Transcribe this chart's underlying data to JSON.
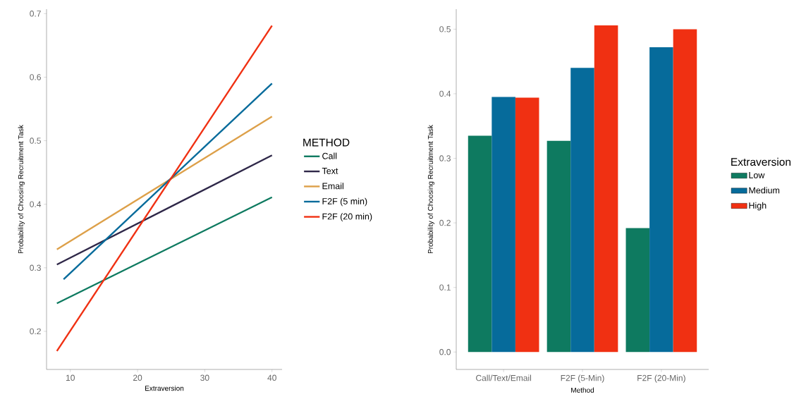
{
  "chart_data": [
    {
      "type": "line",
      "xlabel": "Extraversion",
      "ylabel": "Probability of Choosing Recruitment Task",
      "legend_title": "METHOD",
      "legend": "right",
      "xlim": [
        6.46,
        41.5
      ],
      "ylim": [
        0.14,
        0.707
      ],
      "xticks": [
        10,
        20,
        30,
        40
      ],
      "yticks": [
        0.2,
        0.3,
        0.4,
        0.5,
        0.6,
        0.7
      ],
      "series": [
        {
          "name": "Call",
          "color": "#0e7a60",
          "x": [
            8,
            40
          ],
          "values": [
            0.244,
            0.411
          ]
        },
        {
          "name": "Text",
          "color": "#2e2748",
          "x": [
            8,
            40
          ],
          "values": [
            0.305,
            0.477
          ]
        },
        {
          "name": "Email",
          "color": "#dda049",
          "x": [
            8,
            40
          ],
          "values": [
            0.329,
            0.538
          ]
        },
        {
          "name": "F2F (5 min)",
          "color": "#066b9b",
          "x": [
            9,
            40
          ],
          "values": [
            0.282,
            0.59
          ]
        },
        {
          "name": "F2F (20 min)",
          "color": "#f03012",
          "x": [
            8,
            40
          ],
          "values": [
            0.169,
            0.681
          ]
        }
      ]
    },
    {
      "type": "bar",
      "xlabel": "Method",
      "ylabel": "Probability of Choosing Recruitment Task",
      "legend_title": "Extraversion",
      "legend": "right",
      "categories": [
        "Call/Text/Email",
        "F2F (5-Min)",
        "F2F (20-Min)"
      ],
      "ylim": [
        -0.027,
        0.531
      ],
      "yticks": [
        {
          "value": 0,
          "label": "0.0"
        },
        0.1,
        0.2,
        0.3,
        0.4,
        0.5
      ],
      "series": [
        {
          "name": "Low",
          "color": "#0e7a60",
          "values": [
            0.335,
            0.327,
            0.192
          ]
        },
        {
          "name": "Medium",
          "color": "#066b9b",
          "values": [
            0.395,
            0.44,
            0.472
          ]
        },
        {
          "name": "High",
          "color": "#f03012",
          "values": [
            0.394,
            0.506,
            0.5
          ]
        }
      ]
    }
  ]
}
